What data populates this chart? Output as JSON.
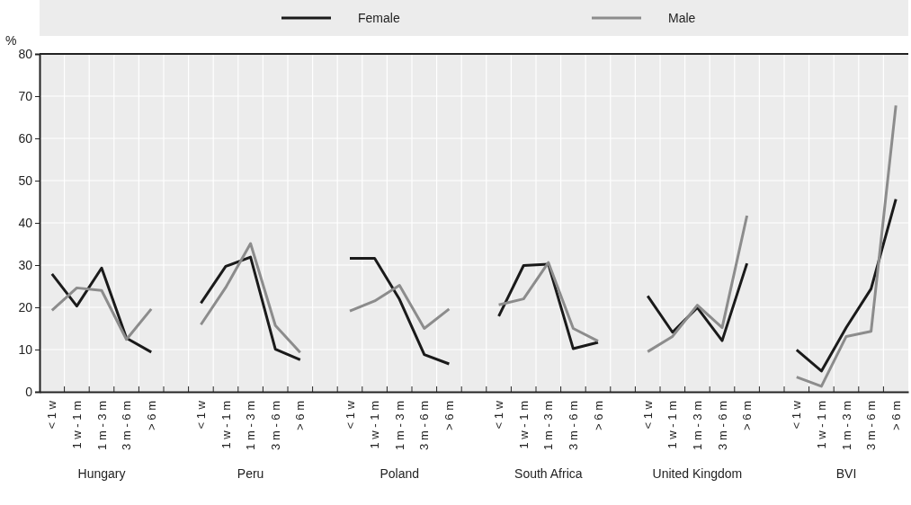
{
  "chart_data": {
    "type": "line",
    "ylabel": "%",
    "categories": [
      "< 1 w",
      "1 w - 1 m",
      "1 m - 3 m",
      "3 m - 6 m",
      "> 6 m",
      null,
      "< 1 w",
      "1 w - 1 m",
      "1 m - 3 m",
      "3 m - 6 m",
      "> 6 m",
      null,
      "< 1 w",
      "1 w - 1 m",
      "1 m - 3 m",
      "3 m - 6 m",
      "> 6 m",
      null,
      "< 1 w",
      "1 w - 1 m",
      "1 m - 3 m",
      "3 m - 6 m",
      "> 6 m",
      null,
      "< 1 w",
      "1 w - 1 m",
      "1 m - 3 m",
      "3 m - 6 m",
      "> 6 m",
      null,
      "< 1 w",
      "1 w - 1 m",
      "1 m - 3 m",
      "3 m - 6 m",
      "> 6 m"
    ],
    "series": [
      {
        "name": "Female",
        "color": "#1a1a1a",
        "values": [
          27.9,
          20.3,
          29.3,
          12.7,
          9.4,
          null,
          21,
          29.7,
          31.9,
          10.1,
          7.6,
          null,
          31.6,
          31.6,
          21.9,
          8.8,
          6.6,
          null,
          17.9,
          29.9,
          30.2,
          10.2,
          11.7,
          null,
          22.7,
          14.1,
          19.9,
          12.1,
          30.4,
          null,
          9.9,
          4.9,
          15.2,
          24.4,
          45.6
        ]
      },
      {
        "name": "Male",
        "color": "#8c8c8c",
        "values": [
          19.3,
          24.6,
          24.0,
          12.4,
          19.6,
          null,
          15.9,
          24.7,
          35.1,
          15.7,
          9.3,
          null,
          19.1,
          21.5,
          25.2,
          15.0,
          19.6,
          null,
          20.6,
          22.0,
          30.6,
          15.0,
          12.0,
          null,
          9.5,
          13.1,
          20.5,
          15.2,
          41.7,
          null,
          3.5,
          1.3,
          13.1,
          14.3,
          67.8
        ]
      }
    ],
    "ylim": [
      0,
      80
    ],
    "yticks": [
      0,
      10,
      20,
      30,
      40,
      50,
      60,
      70,
      80
    ],
    "grid": true,
    "legend": "top",
    "line_style": "solid",
    "annotations": [
      "Hungary",
      "Peru",
      "Poland",
      "South Africa",
      "United Kingdom",
      "BVI"
    ]
  }
}
